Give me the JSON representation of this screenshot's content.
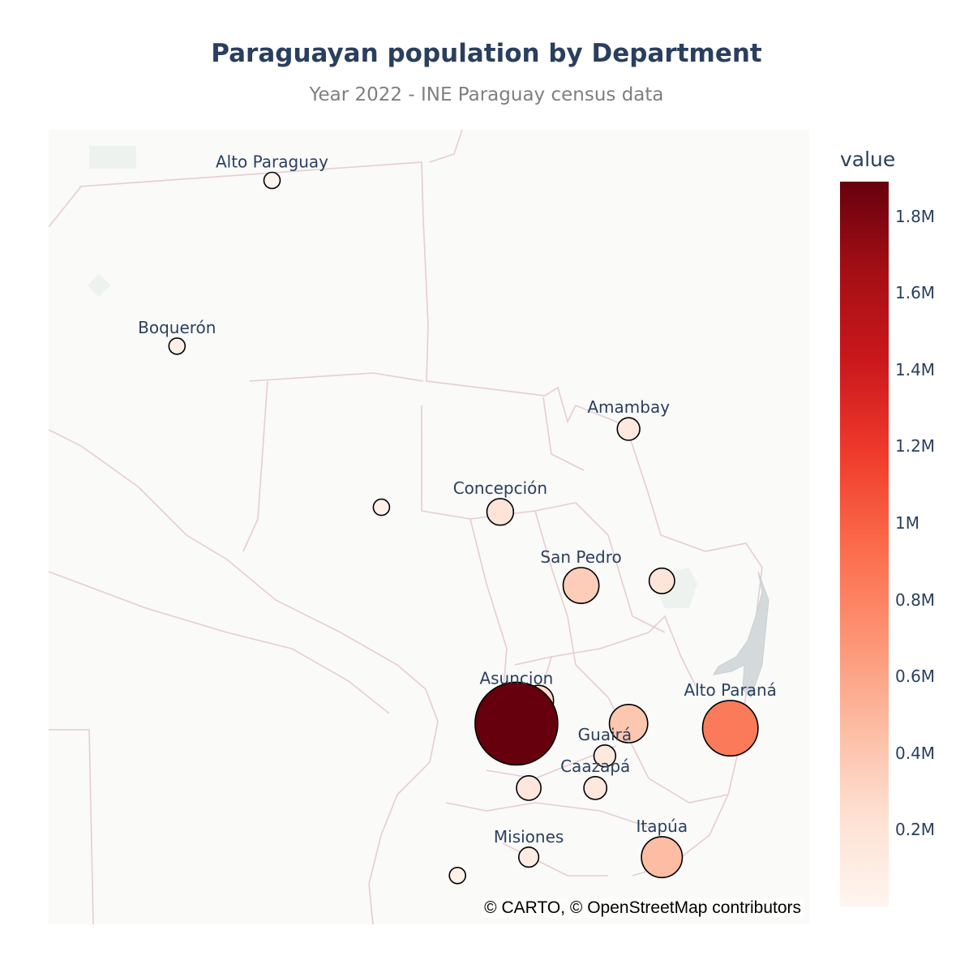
{
  "title": "Paraguayan population by Department",
  "subtitle": "Year 2022 - INE Paraguay census data",
  "attribution": "© CARTO, © OpenStreetMap contributors",
  "colors": {
    "scale": [
      "#fff5f0",
      "#fee0d2",
      "#fcbba1",
      "#fc9272",
      "#fb6a4a",
      "#ef3b2c",
      "#cb181d",
      "#a50f15",
      "#67000d"
    ],
    "marker_outline": "#000000",
    "label_text": "#2a3f5f"
  },
  "chart_data": {
    "type": "scatter",
    "map_style": "carto-positron",
    "colorbar": {
      "title": "value",
      "range": [
        0,
        1890000
      ],
      "ticks": [
        {
          "label": "1.8M",
          "value": 1800000
        },
        {
          "label": "1.6M",
          "value": 1600000
        },
        {
          "label": "1.4M",
          "value": 1400000
        },
        {
          "label": "1.2M",
          "value": 1200000
        },
        {
          "label": "1M",
          "value": 1000000
        },
        {
          "label": "0.8M",
          "value": 800000
        },
        {
          "label": "0.6M",
          "value": 600000
        },
        {
          "label": "0.4M",
          "value": 400000
        },
        {
          "label": "0.2M",
          "value": 200000
        }
      ]
    },
    "points": [
      {
        "label": "Alto Paraguay",
        "lon": -60.2,
        "lat": -20.6,
        "value": 17000
      },
      {
        "label": "Boquerón",
        "lon": -61.2,
        "lat": -22.4,
        "value": 69000
      },
      {
        "label": "",
        "lon": -59.05,
        "lat": -24.15,
        "value": 50000
      },
      {
        "label": "Concepción",
        "lon": -57.8,
        "lat": -24.2,
        "value": 195000
      },
      {
        "label": "Amambay",
        "lon": -56.45,
        "lat": -23.3,
        "value": 140000
      },
      {
        "label": "San Pedro",
        "lon": -56.95,
        "lat": -25.0,
        "value": 355000
      },
      {
        "label": "",
        "lon": -56.1,
        "lat": -24.95,
        "value": 180000
      },
      {
        "label": "Asuncion",
        "lon": -57.63,
        "lat": -26.35,
        "value": 480000
      },
      {
        "label": "",
        "lon": -57.63,
        "lat": -26.5,
        "value": 1890000
      },
      {
        "label": "",
        "lon": -57.4,
        "lat": -26.25,
        "value": 260000
      },
      {
        "label": "",
        "lon": -56.45,
        "lat": -26.5,
        "value": 405000
      },
      {
        "label": "Alto Paraná",
        "lon": -55.38,
        "lat": -26.55,
        "value": 850000
      },
      {
        "label": "Guairá",
        "lon": -56.7,
        "lat": -26.85,
        "value": 130000
      },
      {
        "label": "Caazapá",
        "lon": -56.8,
        "lat": -27.2,
        "value": 145000
      },
      {
        "label": "",
        "lon": -57.5,
        "lat": -27.2,
        "value": 165000
      },
      {
        "label": "Misiones",
        "lon": -57.5,
        "lat": -27.95,
        "value": 110000
      },
      {
        "label": "Itapúa",
        "lon": -56.1,
        "lat": -27.95,
        "value": 460000
      },
      {
        "label": "",
        "lon": -58.25,
        "lat": -28.15,
        "value": 55000
      }
    ]
  }
}
